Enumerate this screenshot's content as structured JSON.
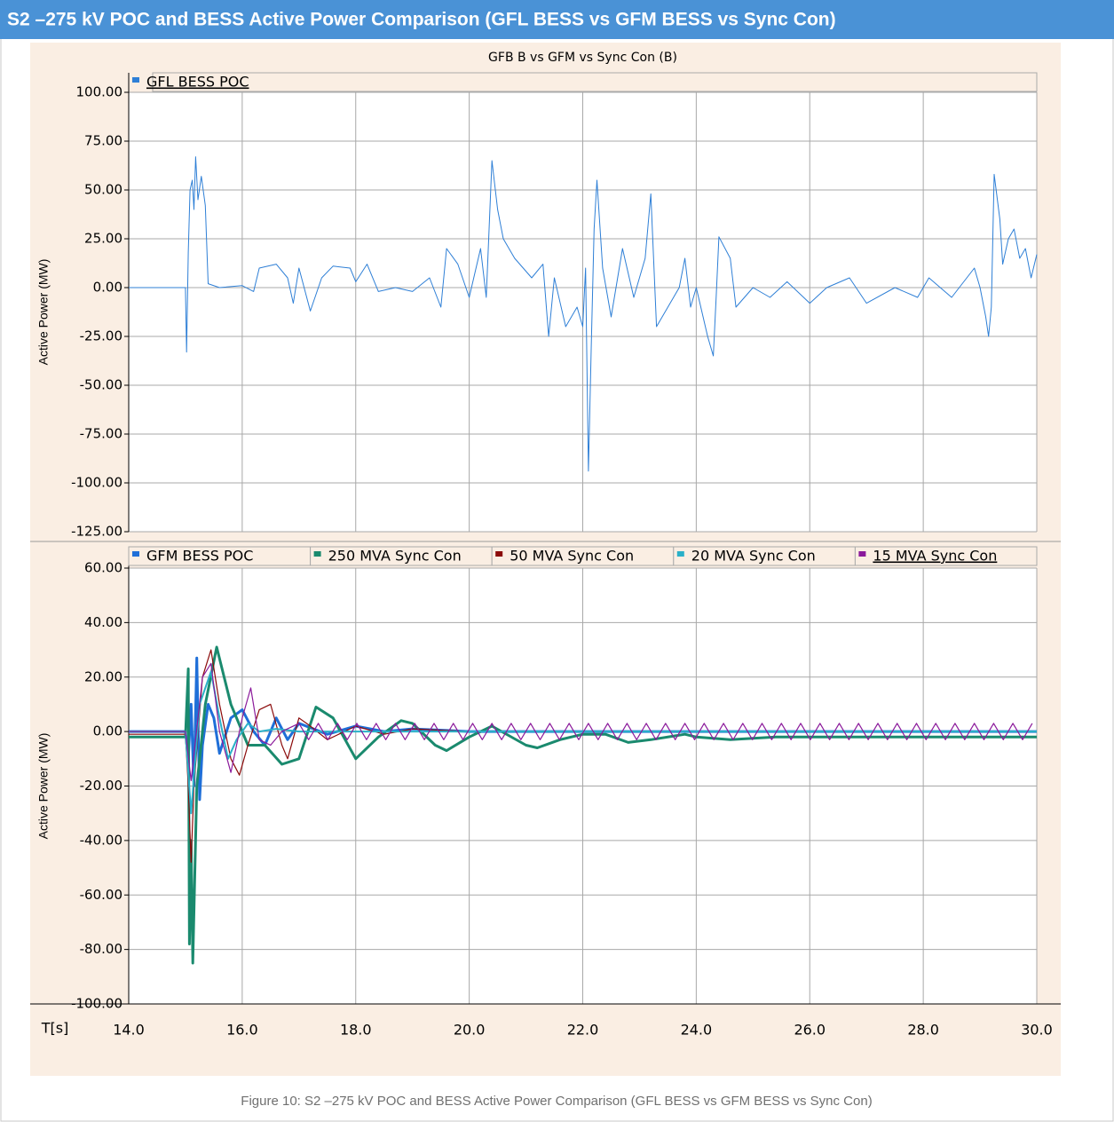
{
  "header": {
    "title": "S2 –275 kV POC and BESS Active Power Comparison (GFL BESS vs GFM BESS vs Sync Con)"
  },
  "caption": "Figure 10: S2 –275 kV POC and BESS Active Power Comparison (GFL BESS vs GFM BESS vs Sync Con)",
  "chart_data": [
    {
      "type": "line",
      "title": "GFB B vs GFM vs Sync Con (B)",
      "ylabel": "Active Power (MW)",
      "xlim": [
        14,
        30
      ],
      "ylim": [
        -125,
        100
      ],
      "yticks": [
        {
          "value": 100,
          "label": "100.00"
        },
        {
          "value": 75,
          "label": "75.00"
        },
        {
          "value": 50,
          "label": "50.00"
        },
        {
          "value": 25,
          "label": "25.00"
        },
        {
          "value": 0,
          "label": "0.00"
        },
        {
          "value": -25,
          "label": "-25.00"
        },
        {
          "value": -50,
          "label": "-50.00"
        },
        {
          "value": -75,
          "label": "-75.00"
        },
        {
          "value": -100,
          "label": "-100.00"
        },
        {
          "value": -125,
          "label": "-125.00"
        }
      ],
      "grid": true,
      "legend": "top",
      "series": [
        {
          "name": "GFL BESS POC",
          "color": "#2e7fd6",
          "width": 1,
          "x": [
            14.0,
            15.0,
            15.02,
            15.05,
            15.08,
            15.12,
            15.15,
            15.18,
            15.22,
            15.28,
            15.35,
            15.4,
            15.6,
            16.0,
            16.2,
            16.3,
            16.6,
            16.8,
            16.9,
            17.0,
            17.2,
            17.4,
            17.6,
            17.9,
            18.0,
            18.2,
            18.4,
            18.7,
            19.0,
            19.3,
            19.5,
            19.6,
            19.8,
            20.0,
            20.2,
            20.3,
            20.4,
            20.5,
            20.6,
            20.8,
            21.1,
            21.3,
            21.4,
            21.5,
            21.7,
            21.9,
            22.0,
            22.05,
            22.1,
            22.15,
            22.2,
            22.25,
            22.35,
            22.5,
            22.7,
            22.9,
            23.1,
            23.2,
            23.3,
            23.5,
            23.7,
            23.8,
            23.9,
            24.0,
            24.2,
            24.3,
            24.35,
            24.4,
            24.6,
            24.7,
            25.0,
            25.3,
            25.6,
            26.0,
            26.3,
            26.7,
            27.0,
            27.5,
            27.9,
            28.1,
            28.5,
            28.9,
            29.0,
            29.1,
            29.15,
            29.2,
            29.25,
            29.35,
            29.4,
            29.5,
            29.6,
            29.7,
            29.8,
            29.9,
            30.0
          ],
          "values": [
            0,
            0,
            -33,
            18,
            50,
            55,
            40,
            67,
            45,
            57,
            42,
            2,
            0,
            1,
            -2,
            10,
            12,
            5,
            -8,
            10,
            -12,
            5,
            11,
            10,
            3,
            12,
            -2,
            0,
            -2,
            5,
            -10,
            20,
            12,
            -5,
            20,
            -5,
            65,
            40,
            25,
            15,
            5,
            12,
            -25,
            5,
            -20,
            -10,
            -20,
            10,
            -94,
            -30,
            30,
            55,
            10,
            -15,
            20,
            -5,
            15,
            48,
            -20,
            -10,
            0,
            15,
            -10,
            0,
            -25,
            -35,
            -5,
            26,
            15,
            -10,
            0,
            -5,
            3,
            -8,
            0,
            5,
            -8,
            0,
            -5,
            5,
            -5,
            10,
            0,
            -15,
            -25,
            -10,
            58,
            35,
            12,
            25,
            30,
            15,
            20,
            5,
            17
          ]
        }
      ]
    },
    {
      "type": "line",
      "ylabel": "Active Power (MW)",
      "xlabel": "T[s]",
      "xlim": [
        14,
        30
      ],
      "ylim": [
        -100,
        60
      ],
      "xticks": [
        {
          "value": 14,
          "label": "14.0"
        },
        {
          "value": 16,
          "label": "16.0"
        },
        {
          "value": 18,
          "label": "18.0"
        },
        {
          "value": 20,
          "label": "20.0"
        },
        {
          "value": 22,
          "label": "22.0"
        },
        {
          "value": 24,
          "label": "24.0"
        },
        {
          "value": 26,
          "label": "26.0"
        },
        {
          "value": 28,
          "label": "28.0"
        },
        {
          "value": 30,
          "label": "30.0"
        }
      ],
      "yticks": [
        {
          "value": 60,
          "label": "60.00"
        },
        {
          "value": 40,
          "label": "40.00"
        },
        {
          "value": 20,
          "label": "20.00"
        },
        {
          "value": 0,
          "label": "0.00"
        },
        {
          "value": -20,
          "label": "-20.00"
        },
        {
          "value": -40,
          "label": "-40.00"
        },
        {
          "value": -60,
          "label": "-60.00"
        },
        {
          "value": -80,
          "label": "-80.00"
        },
        {
          "value": -100,
          "label": "-100.00"
        }
      ],
      "grid": true,
      "legend": "top",
      "series": [
        {
          "name": "GFM BESS POC",
          "color": "#1f6fd8",
          "width": 3,
          "x": [
            14,
            15.0,
            15.05,
            15.1,
            15.15,
            15.2,
            15.25,
            15.3,
            15.4,
            15.5,
            15.6,
            15.8,
            16.0,
            16.2,
            16.4,
            16.6,
            16.8,
            17.0,
            17.5,
            18.0,
            18.5,
            19,
            20,
            30
          ],
          "values": [
            0,
            0,
            -10,
            10,
            -20,
            27,
            -25,
            -5,
            10,
            5,
            -8,
            5,
            8,
            0,
            -5,
            5,
            -3,
            3,
            -1,
            2,
            0,
            1,
            0,
            0
          ]
        },
        {
          "name": "250 MVA Sync Con",
          "color": "#1a8a6e",
          "width": 3,
          "x": [
            14,
            15.0,
            15.05,
            15.07,
            15.1,
            15.13,
            15.2,
            15.35,
            15.55,
            15.8,
            16.1,
            16.4,
            16.7,
            17.0,
            17.3,
            17.6,
            18.0,
            18.4,
            18.8,
            19.0,
            19.4,
            19.6,
            20.0,
            20.4,
            21.0,
            21.2,
            21.6,
            22.0,
            22.4,
            22.8,
            23.2,
            23.8,
            24.0,
            24.6,
            25.4,
            26,
            30
          ],
          "values": [
            -2,
            -2,
            23,
            -78,
            -40,
            -85,
            -20,
            10,
            31,
            10,
            -5,
            -5,
            -12,
            -10,
            9,
            5,
            -10,
            -2,
            4,
            3,
            -5,
            -7,
            -2,
            2,
            -5,
            -6,
            -3,
            -1,
            -1,
            -4,
            -3,
            -1,
            -2,
            -3,
            -2,
            -2,
            -2
          ]
        },
        {
          "name": "50 MVA Sync Con",
          "color": "#8b0a0a",
          "width": 1.2,
          "x": [
            14,
            15,
            15.05,
            15.1,
            15.15,
            15.3,
            15.45,
            15.6,
            15.8,
            15.95,
            16.1,
            16.3,
            16.5,
            16.7,
            16.8,
            17.0,
            17.2,
            17.5,
            18.0,
            18.5,
            19,
            20,
            30
          ],
          "values": [
            -1,
            -1,
            -20,
            -48,
            -20,
            20,
            30,
            10,
            -10,
            -16,
            -5,
            8,
            10,
            -5,
            -10,
            5,
            2,
            -3,
            2,
            -1,
            1,
            0,
            0
          ]
        },
        {
          "name": "20 MVA Sync Con",
          "color": "#2ab0c8",
          "width": 2,
          "x": [
            14,
            15,
            15.1,
            15.25,
            15.45,
            15.6,
            15.75,
            15.9,
            16.1,
            16.3,
            16.6,
            17,
            30
          ],
          "values": [
            0,
            0,
            -30,
            10,
            22,
            5,
            -10,
            -3,
            3,
            0,
            1,
            0,
            0
          ]
        },
        {
          "name": "15 MVA Sync Con",
          "color": "#8b1a9b",
          "width": 1.2,
          "x": [
            14,
            15,
            15.1,
            15.3,
            15.45,
            15.6,
            15.8,
            16.0,
            16.15,
            16.3,
            16.5,
            16.7,
            17.0,
            17.17,
            17.34,
            17.51,
            17.68,
            17.85,
            18.02,
            18.19,
            18.36,
            18.53,
            18.7,
            18.87,
            19.04,
            19.21,
            19.38,
            19.55,
            19.72,
            19.89,
            20.06,
            20.23,
            20.4,
            20.57,
            20.74,
            20.91,
            21.08,
            21.25,
            21.42,
            21.59,
            21.76,
            21.93,
            22.1,
            22.27,
            22.44,
            22.61,
            22.78,
            22.95,
            23.12,
            23.29,
            23.46,
            23.63,
            23.8,
            23.97,
            24.14,
            24.31,
            24.48,
            24.65,
            24.82,
            24.99,
            25.16,
            25.33,
            25.5,
            25.67,
            25.84,
            26.01,
            26.18,
            26.35,
            26.52,
            26.69,
            26.86,
            27.03,
            27.2,
            27.37,
            27.54,
            27.71,
            27.88,
            28.05,
            28.22,
            28.39,
            28.56,
            28.73,
            28.9,
            29.07,
            29.24,
            29.41,
            29.58,
            29.75,
            29.92
          ],
          "values": [
            0,
            0,
            -18,
            20,
            25,
            0,
            -15,
            5,
            16,
            -3,
            -5,
            0,
            3,
            -3,
            3,
            -3,
            3,
            -3,
            3,
            -3,
            3,
            -3,
            3,
            -3,
            3,
            -3,
            3,
            -3,
            3,
            -3,
            3,
            -3,
            3,
            -3,
            3,
            -3,
            3,
            -3,
            3,
            -3,
            3,
            -3,
            3,
            -3,
            3,
            -3,
            3,
            -3,
            3,
            -3,
            3,
            -3,
            3,
            -3,
            3,
            -3,
            3,
            -3,
            3,
            -3,
            3,
            -3,
            3,
            -3,
            3,
            -3,
            3,
            -3,
            3,
            -3,
            3,
            -3,
            3,
            -3,
            3,
            -3,
            3,
            -3,
            3,
            -3,
            3,
            -3,
            3,
            -3,
            3,
            -3,
            3,
            -3,
            3
          ]
        }
      ]
    }
  ]
}
